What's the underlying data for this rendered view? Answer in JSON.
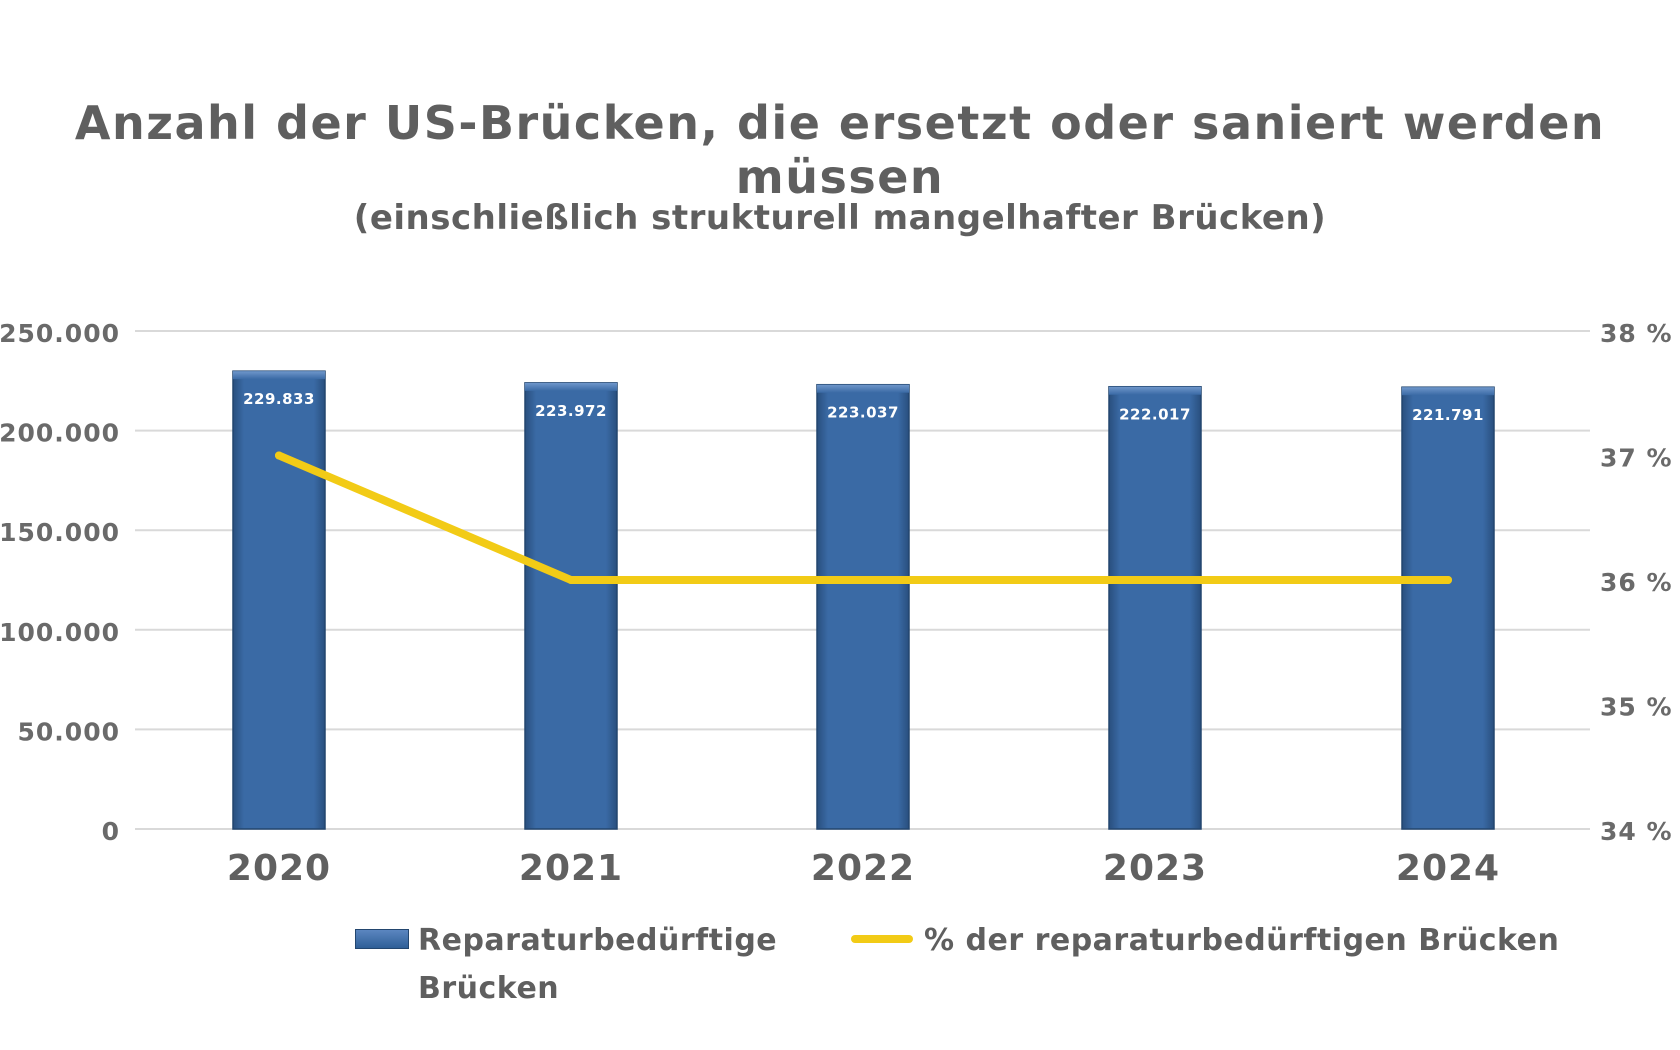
{
  "chart_data": {
    "type": "bar",
    "title": "Anzahl der US-Brücken, die ersetzt oder saniert werden müssen",
    "subtitle": "(einschließlich strukturell mangelhafter Brücken)",
    "categories": [
      "2020",
      "2021",
      "2022",
      "2023",
      "2024"
    ],
    "series": [
      {
        "name": "Reparaturbedürftige Brücken",
        "type": "bar",
        "axis": "left",
        "values": [
          229833,
          223972,
          223037,
          222017,
          221791
        ],
        "data_labels": [
          "229.833",
          "223.972",
          "223.037",
          "222.017",
          "221.791"
        ],
        "color": "#3a6aa5"
      },
      {
        "name": "% der reparaturbedürftigen Brücken",
        "type": "line",
        "axis": "right",
        "values": [
          37,
          36,
          36,
          36,
          36
        ],
        "color": "#f2cb16"
      }
    ],
    "y_left": {
      "ylim": [
        0,
        250000
      ],
      "ticks": [
        0,
        50000,
        100000,
        150000,
        200000,
        250000
      ],
      "tick_labels": [
        "0",
        "50.000",
        "100.000",
        "150.000",
        "200.000",
        "250.000"
      ]
    },
    "y_right": {
      "ylim": [
        34,
        38
      ],
      "ticks": [
        34,
        35,
        36,
        37,
        38
      ],
      "tick_labels": [
        "34 %",
        "35 %",
        "36 %",
        "37 %",
        "38 %"
      ]
    },
    "grid": true,
    "legend_position": "bottom"
  },
  "legend": {
    "bar_label": "Reparaturbedürftige Brücken",
    "line_label": "% der reparaturbedürftigen Brücken"
  }
}
